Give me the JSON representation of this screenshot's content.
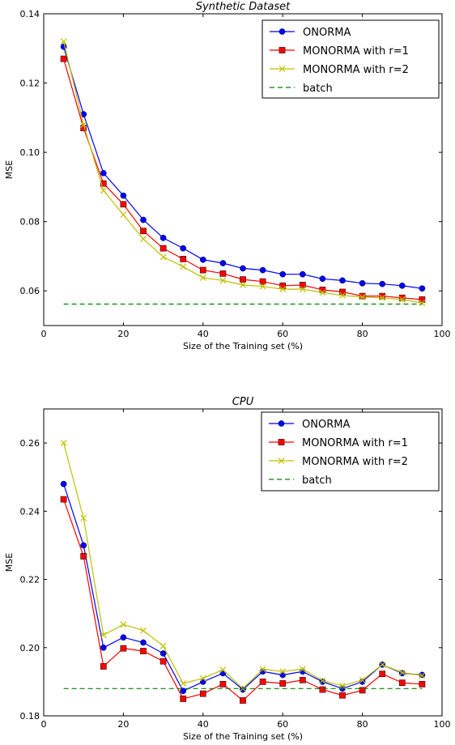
{
  "chart_data": [
    {
      "type": "line",
      "title": "Synthetic Dataset",
      "xlabel": "Size of the Training set (%)",
      "ylabel": "MSE",
      "xlim": [
        0,
        100
      ],
      "ylim": [
        0.05,
        0.14
      ],
      "xticks": [
        "0",
        "20",
        "40",
        "60",
        "80",
        "100"
      ],
      "yticks": [
        "0.06",
        "0.08",
        "0.10",
        "0.12",
        "0.14"
      ],
      "legend_position": "top-right",
      "x": [
        5,
        10,
        15,
        20,
        25,
        30,
        35,
        40,
        45,
        50,
        55,
        60,
        65,
        70,
        75,
        80,
        85,
        90,
        95
      ],
      "series": [
        {
          "name": "ONORMA",
          "color": "#0000ff",
          "marker": "circle",
          "values": [
            0.1305,
            0.111,
            0.094,
            0.0875,
            0.0805,
            0.0753,
            0.0723,
            0.069,
            0.068,
            0.0665,
            0.066,
            0.0648,
            0.0648,
            0.0635,
            0.063,
            0.0622,
            0.062,
            0.0615,
            0.0607
          ]
        },
        {
          "name": "MONORMA with r=1",
          "color": "#ff0000",
          "marker": "square",
          "values": [
            0.127,
            0.107,
            0.091,
            0.085,
            0.0773,
            0.0723,
            0.0692,
            0.066,
            0.065,
            0.0633,
            0.0627,
            0.0615,
            0.0617,
            0.0603,
            0.0597,
            0.0585,
            0.0585,
            0.058,
            0.0575
          ]
        },
        {
          "name": "MONORMA with r=2",
          "color": "#bfbf00",
          "marker": "x",
          "values": [
            0.132,
            0.108,
            0.089,
            0.082,
            0.075,
            0.0698,
            0.067,
            0.0638,
            0.063,
            0.0617,
            0.0613,
            0.0605,
            0.0605,
            0.0595,
            0.0587,
            0.0582,
            0.058,
            0.0575,
            0.0565
          ]
        },
        {
          "name": "batch",
          "color": "#008000",
          "marker": "none",
          "dashed": true,
          "values": [
            0.0562,
            0.0562,
            0.0562,
            0.0562,
            0.0562,
            0.0562,
            0.0562,
            0.0562,
            0.0562,
            0.0562,
            0.0562,
            0.0562,
            0.0562,
            0.0562,
            0.0562,
            0.0562,
            0.0562,
            0.0562,
            0.0562
          ]
        }
      ]
    },
    {
      "type": "line",
      "title": "CPU",
      "xlabel": "Size of the Training set (%)",
      "ylabel": "MSE",
      "xlim": [
        0,
        100
      ],
      "ylim": [
        0.18,
        0.27
      ],
      "xticks": [
        "0",
        "20",
        "40",
        "60",
        "80",
        "100"
      ],
      "yticks": [
        "0.18",
        "0.20",
        "0.22",
        "0.24",
        "0.26"
      ],
      "legend_position": "top-right",
      "x": [
        5,
        10,
        15,
        20,
        25,
        30,
        35,
        40,
        45,
        50,
        55,
        60,
        65,
        70,
        75,
        80,
        85,
        90,
        95
      ],
      "series": [
        {
          "name": "ONORMA",
          "color": "#0000ff",
          "marker": "circle",
          "values": [
            0.248,
            0.23,
            0.2,
            0.203,
            0.2015,
            0.1983,
            0.1873,
            0.19,
            0.1925,
            0.1877,
            0.193,
            0.192,
            0.193,
            0.19,
            0.188,
            0.19,
            0.195,
            0.1925,
            0.192
          ]
        },
        {
          "name": "MONORMA with r=1",
          "color": "#ff0000",
          "marker": "square",
          "values": [
            0.2435,
            0.2268,
            0.1945,
            0.1998,
            0.199,
            0.196,
            0.185,
            0.1865,
            0.1893,
            0.1845,
            0.19,
            0.1895,
            0.1905,
            0.1877,
            0.186,
            0.1875,
            0.1923,
            0.1897,
            0.1893
          ]
        },
        {
          "name": "MONORMA with r=2",
          "color": "#bfbf00",
          "marker": "x",
          "values": [
            0.26,
            0.238,
            0.2037,
            0.2068,
            0.205,
            0.2005,
            0.1895,
            0.191,
            0.1935,
            0.188,
            0.1937,
            0.193,
            0.1937,
            0.1903,
            0.1888,
            0.1905,
            0.195,
            0.1927,
            0.1918
          ]
        },
        {
          "name": "batch",
          "color": "#008000",
          "marker": "none",
          "dashed": true,
          "values": [
            0.188,
            0.188,
            0.188,
            0.188,
            0.188,
            0.188,
            0.188,
            0.188,
            0.188,
            0.188,
            0.188,
            0.188,
            0.188,
            0.188,
            0.188,
            0.188,
            0.188,
            0.188,
            0.188
          ]
        }
      ]
    }
  ]
}
